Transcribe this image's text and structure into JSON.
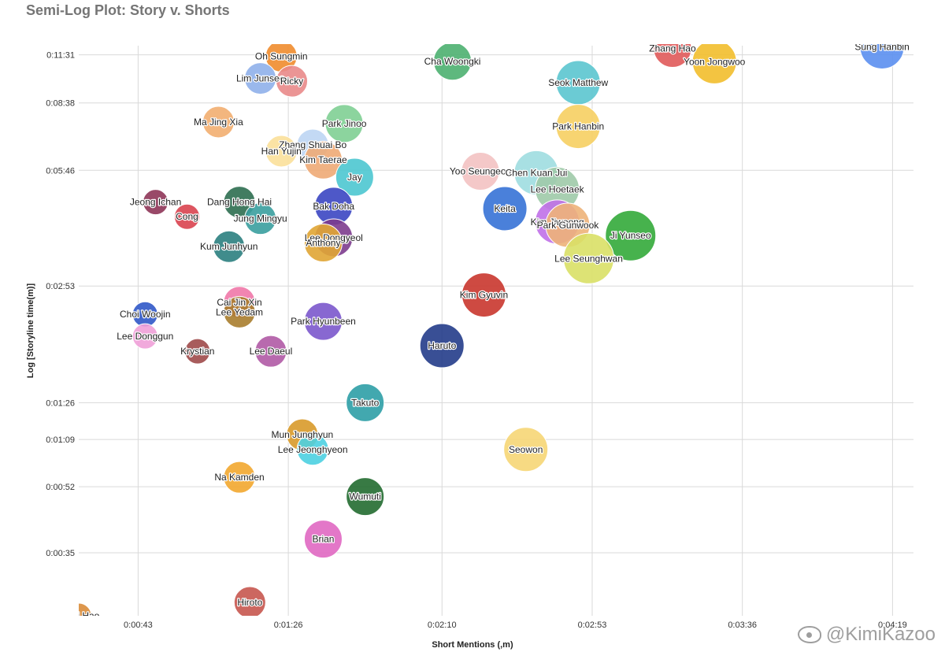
{
  "chart_data": {
    "type": "scatter",
    "title": "Semi-Log Plot: Story v. Shorts",
    "xlabel": "Short Mentions (,m)",
    "ylabel": "Log [Storyline time(m)]",
    "x_unit": "seconds",
    "y_unit": "seconds",
    "y_scale": "log",
    "grid": true,
    "legend": "none",
    "xlim": [
      26,
      265
    ],
    "ylim": [
      24,
      730
    ],
    "x_ticks": [
      {
        "value": 43,
        "label": "0:00:43"
      },
      {
        "value": 86,
        "label": "0:01:26"
      },
      {
        "value": 130,
        "label": "0:02:10"
      },
      {
        "value": 173,
        "label": "0:02:53"
      },
      {
        "value": 216,
        "label": "0:03:36"
      },
      {
        "value": 259,
        "label": "0:04:19"
      }
    ],
    "y_ticks": [
      {
        "value": 35,
        "label": "0:00:35"
      },
      {
        "value": 52,
        "label": "0:00:52"
      },
      {
        "value": 69,
        "label": "0:01:09"
      },
      {
        "value": 86,
        "label": "0:01:26"
      },
      {
        "value": 173,
        "label": "0:02:53"
      },
      {
        "value": 346,
        "label": "0:05:46"
      },
      {
        "value": 518,
        "label": "0:08:38"
      },
      {
        "value": 691,
        "label": "0:11:31"
      }
    ],
    "points": [
      {
        "name": "Sung Hanbin",
        "x": 256,
        "y": 725,
        "size": 5,
        "color": "#5b8ff0"
      },
      {
        "name": "Zhang Hao",
        "x": 196,
        "y": 718,
        "size": 4,
        "color": "#e05a5a"
      },
      {
        "name": "Yoon Jongwoo",
        "x": 208,
        "y": 663,
        "size": 5,
        "color": "#f2be2c"
      },
      {
        "name": "Cha Woongki",
        "x": 133,
        "y": 665,
        "size": 4,
        "color": "#4cb070"
      },
      {
        "name": "Oh Sungmin",
        "x": 84,
        "y": 685,
        "size": 3,
        "color": "#ef8c2e"
      },
      {
        "name": "Lim Junseo",
        "x": 78,
        "y": 600,
        "size": 3,
        "color": "#8fb0ea"
      },
      {
        "name": "Ricky",
        "x": 87,
        "y": 590,
        "size": 3,
        "color": "#e98a8a"
      },
      {
        "name": "Seok Matthew",
        "x": 169,
        "y": 585,
        "size": 5,
        "color": "#5bc5cf"
      },
      {
        "name": "Ma Jing Xia",
        "x": 66,
        "y": 462,
        "size": 3,
        "color": "#f2ae70"
      },
      {
        "name": "Park Jinoo",
        "x": 102,
        "y": 458,
        "size": 4,
        "color": "#7fcf94"
      },
      {
        "name": "Park Hanbin",
        "x": 169,
        "y": 450,
        "size": 5,
        "color": "#f6cf62"
      },
      {
        "name": "Zhang Shuai Bo",
        "x": 93,
        "y": 403,
        "size": 3,
        "color": "#bdd5f3"
      },
      {
        "name": "Han Yujin",
        "x": 84,
        "y": 388,
        "size": 3,
        "color": "#fbe09a"
      },
      {
        "name": "Kim Taerae",
        "x": 96,
        "y": 368,
        "size": 4,
        "color": "#eeaa76"
      },
      {
        "name": "Jay",
        "x": 105,
        "y": 332,
        "size": 4,
        "color": "#4dc6d0"
      },
      {
        "name": "Yoo Seungeon",
        "x": 141,
        "y": 344,
        "size": 4,
        "color": "#f3c2c2"
      },
      {
        "name": "Chen Kuan Jui",
        "x": 157,
        "y": 341,
        "size": 5,
        "color": "#9fdde0"
      },
      {
        "name": "Lee Hoetaek",
        "x": 163,
        "y": 309,
        "size": 5,
        "color": "#9fcaa8"
      },
      {
        "name": "Jeong Ichan",
        "x": 48,
        "y": 286,
        "size": 2,
        "color": "#8e3558"
      },
      {
        "name": "Dang Hong Hai",
        "x": 72,
        "y": 286,
        "size": 3,
        "color": "#2e6e50"
      },
      {
        "name": "Bak Doha",
        "x": 99,
        "y": 279,
        "size": 4,
        "color": "#3b46c2"
      },
      {
        "name": "Keita",
        "x": 148,
        "y": 275,
        "size": 5,
        "color": "#3672d6"
      },
      {
        "name": "Cong",
        "x": 57,
        "y": 262,
        "size": 2,
        "color": "#d9434f"
      },
      {
        "name": "Jung Mingyu",
        "x": 78,
        "y": 259,
        "size": 3,
        "color": "#3a9e9e"
      },
      {
        "name": "Kim Jiwoong",
        "x": 163,
        "y": 254,
        "size": 5,
        "color": "#c070e8"
      },
      {
        "name": "Park Gunwook",
        "x": 166,
        "y": 249,
        "size": 5,
        "color": "#edb279"
      },
      {
        "name": "Ji Yunseo",
        "x": 184,
        "y": 234,
        "size": 6,
        "color": "#33aa3a"
      },
      {
        "name": "Lee Dongyeol",
        "x": 99,
        "y": 231,
        "size": 4,
        "color": "#7d3c8e"
      },
      {
        "name": "Anthony",
        "x": 96,
        "y": 224,
        "size": 4,
        "color": "#e0a534"
      },
      {
        "name": "Kum Junhyun",
        "x": 69,
        "y": 219,
        "size": 3,
        "color": "#2b8080"
      },
      {
        "name": "Lee Seunghwan",
        "x": 172,
        "y": 204,
        "size": 6,
        "color": "#d9e066"
      },
      {
        "name": "Kim Gyuvin",
        "x": 142,
        "y": 164,
        "size": 5,
        "color": "#c9362e"
      },
      {
        "name": "Cai Jin Xin",
        "x": 72,
        "y": 157,
        "size": 3,
        "color": "#ef78a8"
      },
      {
        "name": "Lee Yedam",
        "x": 72,
        "y": 148,
        "size": 3,
        "color": "#a87d2e"
      },
      {
        "name": "Choi Woojin",
        "x": 45,
        "y": 146,
        "size": 2,
        "color": "#3058c8"
      },
      {
        "name": "Park Hyunbeen",
        "x": 96,
        "y": 140,
        "size": 4,
        "color": "#7b58cc"
      },
      {
        "name": "Lee Donggun",
        "x": 45,
        "y": 128,
        "size": 2,
        "color": "#f0a0d8"
      },
      {
        "name": "Haruto",
        "x": 130,
        "y": 121,
        "size": 5,
        "color": "#233c8a"
      },
      {
        "name": "Krystian",
        "x": 60,
        "y": 117,
        "size": 2,
        "color": "#9e4a4a"
      },
      {
        "name": "Lee Daeul",
        "x": 81,
        "y": 117,
        "size": 3,
        "color": "#b05aa5"
      },
      {
        "name": "Takuto",
        "x": 108,
        "y": 86,
        "size": 4,
        "color": "#2e9ea6"
      },
      {
        "name": "Mun Junghyun",
        "x": 90,
        "y": 71,
        "size": 3,
        "color": "#d89a2a"
      },
      {
        "name": "Lee Jeonghyeon",
        "x": 93,
        "y": 65,
        "size": 3,
        "color": "#4dd0e1"
      },
      {
        "name": "Seowon",
        "x": 154,
        "y": 65,
        "size": 5,
        "color": "#f6d676"
      },
      {
        "name": "Na Kamden",
        "x": 72,
        "y": 55,
        "size": 3,
        "color": "#f2a72f"
      },
      {
        "name": "Wumuti",
        "x": 108,
        "y": 49,
        "size": 4,
        "color": "#226c30"
      },
      {
        "name": "Brian",
        "x": 96,
        "y": 38,
        "size": 4,
        "color": "#e068c2"
      },
      {
        "name": "Hiroto",
        "x": 75,
        "y": 26,
        "size": 3,
        "color": "#c7574f"
      },
      {
        "name": "Yu Zi Hao",
        "x": 26,
        "y": 24,
        "size": 2,
        "color": "#d98c3a"
      }
    ]
  },
  "watermark": "@KimiKazoo"
}
